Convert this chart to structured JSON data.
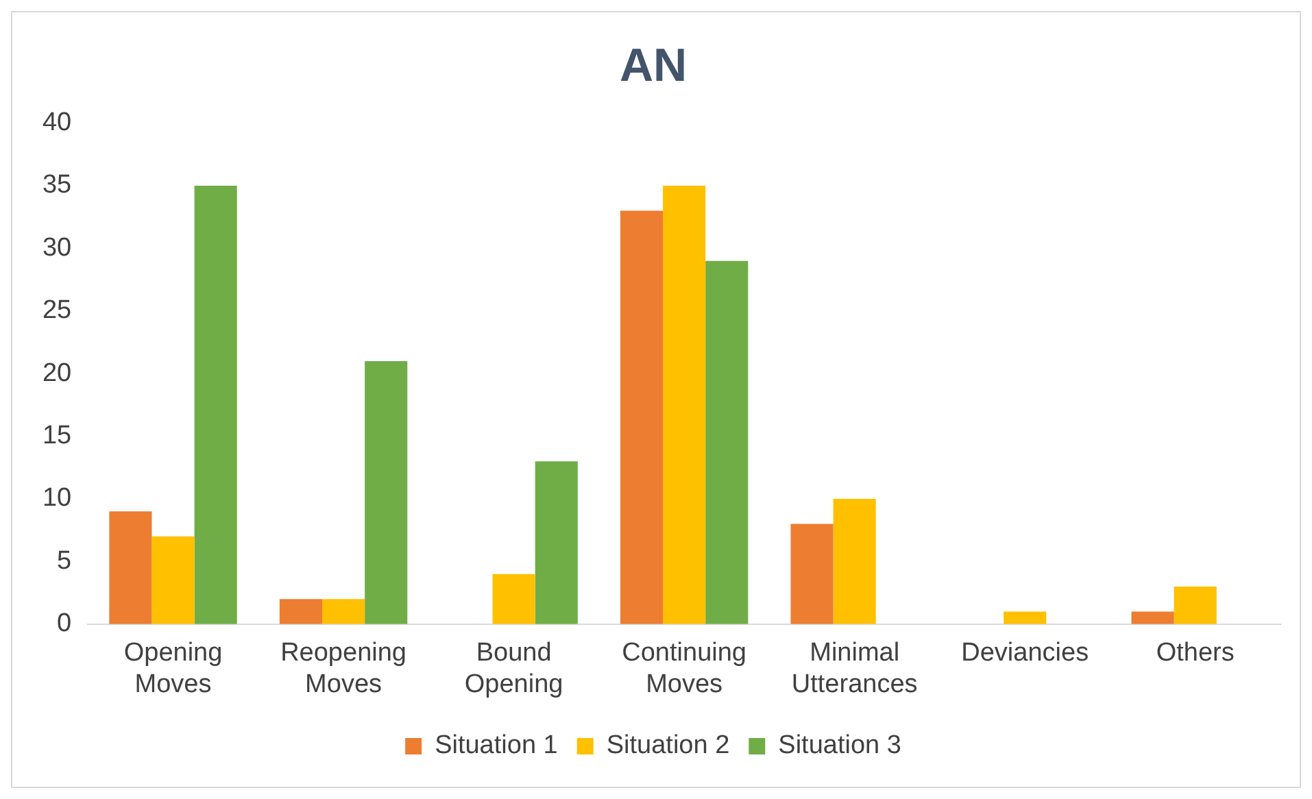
{
  "chart_data": {
    "type": "bar",
    "title": "AN",
    "categories": [
      "Opening Moves",
      "Reopening Moves",
      "Bound Opening",
      "Continuing Moves",
      "Minimal Utterances",
      "Deviancies",
      "Others"
    ],
    "series": [
      {
        "name": "Situation 1",
        "color": "#ed7d31",
        "values": [
          9,
          2,
          0,
          33,
          8,
          0,
          1
        ]
      },
      {
        "name": "Situation 2",
        "color": "#ffc000",
        "values": [
          7,
          2,
          4,
          35,
          10,
          1,
          3
        ]
      },
      {
        "name": "Situation 3",
        "color": "#70ad47",
        "values": [
          35,
          21,
          13,
          29,
          0,
          0,
          0
        ]
      }
    ],
    "ylim": [
      0,
      40
    ],
    "yticks": [
      0,
      5,
      10,
      15,
      20,
      25,
      30,
      35,
      40
    ],
    "grid": false,
    "legend": "bottom"
  }
}
